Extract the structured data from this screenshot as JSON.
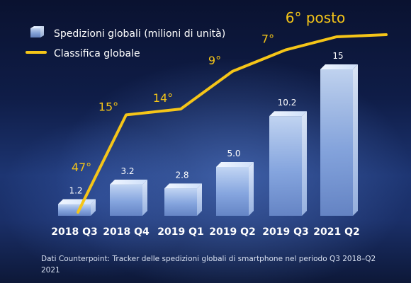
{
  "chart_data": {
    "type": "bar",
    "categories": [
      "2018 Q3",
      "2018 Q4",
      "2019 Q1",
      "2019 Q2",
      "2019 Q3",
      "2021 Q2"
    ],
    "series": [
      {
        "name": "Spedizioni globali (milioni di unità)",
        "type": "bar",
        "values": [
          1.2,
          3.2,
          2.8,
          5.0,
          10.2,
          15
        ],
        "value_labels": [
          "1.2",
          "3.2",
          "2.8",
          "5.0",
          "10.2",
          "15"
        ]
      },
      {
        "name": "Classifica globale",
        "type": "line",
        "values": [
          47,
          15,
          14,
          9,
          7,
          6
        ],
        "value_labels": [
          "47°",
          "15°",
          "14°",
          "9°",
          "7°",
          "6° posto"
        ]
      }
    ],
    "legend_position": "top-left",
    "grid": false,
    "footnote": "Dati Counterpoint: Tracker delle spedizioni globali di smartphone nel periodo Q3 2018–Q2 2021"
  },
  "colors": {
    "line": "#f5c518",
    "bar_light": "#d6e6fb",
    "bar_mid": "#9ebcea",
    "bar_dark": "#6f8fcf"
  }
}
